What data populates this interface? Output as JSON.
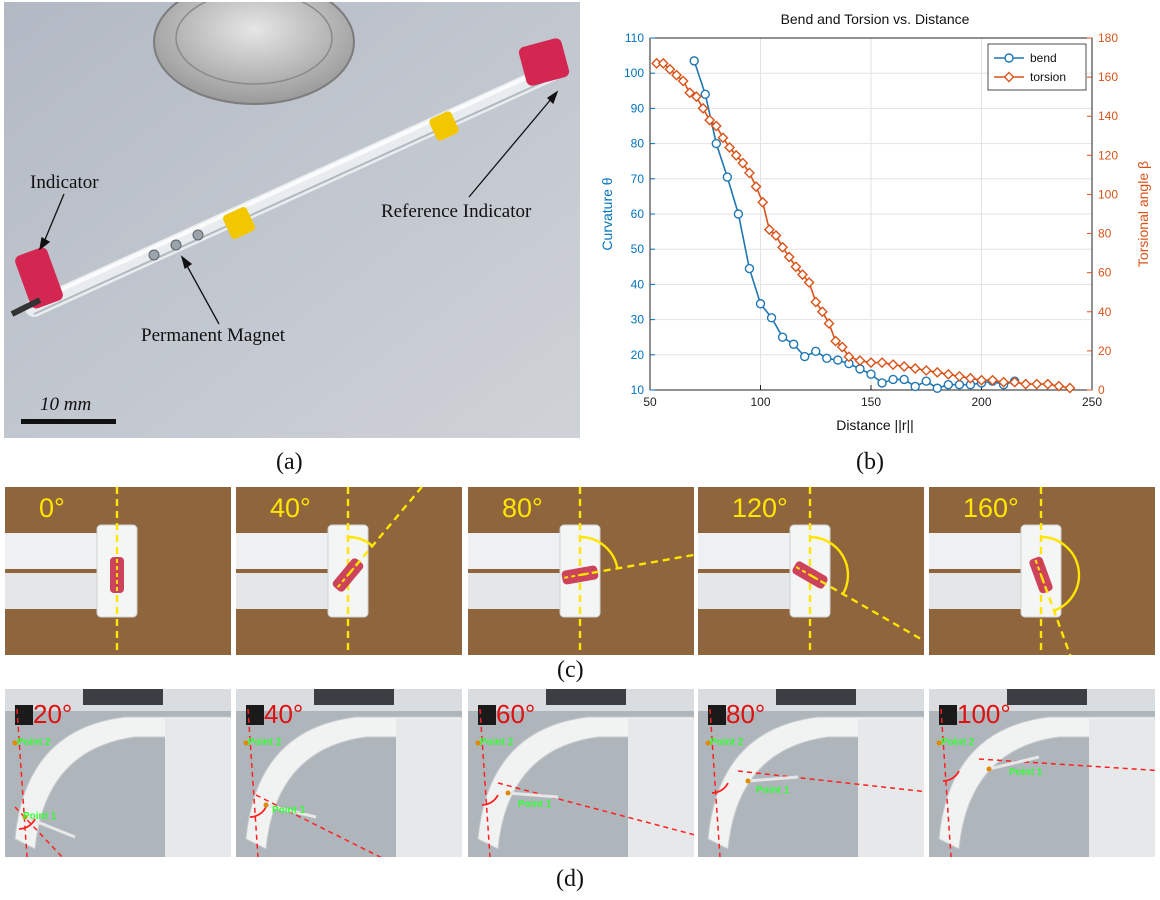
{
  "panel_a": {
    "caption": "(a)",
    "labels": {
      "indicator": "Indicator",
      "reference_indicator": "Reference Indicator",
      "permanent_magnet": "Permanent Magnet",
      "scale_bar": "10 mm"
    }
  },
  "panel_b": {
    "caption": "(b)"
  },
  "panel_c": {
    "caption": "(c)",
    "frames": [
      {
        "angle_label": "0°",
        "angle": 0
      },
      {
        "angle_label": "40°",
        "angle": 40
      },
      {
        "angle_label": "80°",
        "angle": 80
      },
      {
        "angle_label": "120°",
        "angle": 120
      },
      {
        "angle_label": "160°",
        "angle": 160
      }
    ]
  },
  "panel_d": {
    "caption": "(d)",
    "point_labels": {
      "point1": "Point 1",
      "point2": "Point 2"
    },
    "frames": [
      {
        "angle_label": "20°",
        "angle": 20
      },
      {
        "angle_label": "40°",
        "angle": 40
      },
      {
        "angle_label": "60°",
        "angle": 60
      },
      {
        "angle_label": "80°",
        "angle": 80
      },
      {
        "angle_label": "100°",
        "angle": 100
      }
    ]
  },
  "chart_data": {
    "type": "line",
    "title": "Bend and Torsion vs. Distance",
    "xlabel": "Distance ||r||",
    "ylabel_left": "Curvature θ",
    "ylabel_right": "Torsional angle β",
    "xlim": [
      50,
      250
    ],
    "ylim_left": [
      10,
      110
    ],
    "ylim_right": [
      0,
      180
    ],
    "x_ticks": [
      50,
      100,
      150,
      200,
      250
    ],
    "y_ticks_left": [
      10,
      20,
      30,
      40,
      50,
      60,
      70,
      80,
      90,
      100,
      110
    ],
    "y_ticks_right": [
      0,
      20,
      40,
      60,
      80,
      100,
      120,
      140,
      160,
      180
    ],
    "grid": true,
    "legend": "top-right",
    "colors": {
      "bend": "#1f77b4",
      "torsion": "#d95319"
    },
    "series": [
      {
        "name": "bend",
        "axis": "left",
        "marker": "circle",
        "x": [
          70,
          75,
          80,
          85,
          90,
          95,
          100,
          105,
          110,
          115,
          120,
          125,
          130,
          135,
          140,
          145,
          150,
          155,
          160,
          165,
          170,
          175,
          180,
          185,
          190,
          195,
          200,
          205,
          210,
          215
        ],
        "y": [
          103.5,
          94,
          80,
          70.5,
          60,
          44.5,
          34.5,
          30.5,
          25,
          23,
          19.5,
          21,
          19,
          18.5,
          17.5,
          16,
          14.5,
          12,
          13,
          13,
          11,
          12.5,
          10.5,
          11.5,
          11.5,
          11.5,
          12,
          12.5,
          11.5,
          12.5
        ]
      },
      {
        "name": "torsion",
        "axis": "right",
        "marker": "diamond",
        "x": [
          53,
          56,
          59,
          62,
          65,
          68,
          71,
          74,
          77,
          80,
          83,
          86,
          89,
          92,
          95,
          98,
          101,
          104,
          107,
          110,
          113,
          116,
          119,
          122,
          125,
          128,
          131,
          134,
          137,
          140,
          145,
          150,
          155,
          160,
          165,
          170,
          175,
          180,
          185,
          190,
          195,
          200,
          205,
          210,
          215,
          220,
          225,
          230,
          235,
          240
        ],
        "y": [
          167,
          167,
          164,
          161,
          158,
          152,
          150,
          144,
          138,
          135,
          129,
          124,
          120,
          116,
          111,
          104,
          96,
          82,
          79,
          73,
          68,
          63,
          59,
          55,
          45,
          40,
          34,
          25,
          22,
          17,
          15,
          14,
          14,
          13,
          12,
          11,
          10,
          9,
          8,
          7,
          6,
          5,
          5,
          4,
          4,
          3,
          3,
          3,
          2,
          1
        ]
      }
    ]
  }
}
